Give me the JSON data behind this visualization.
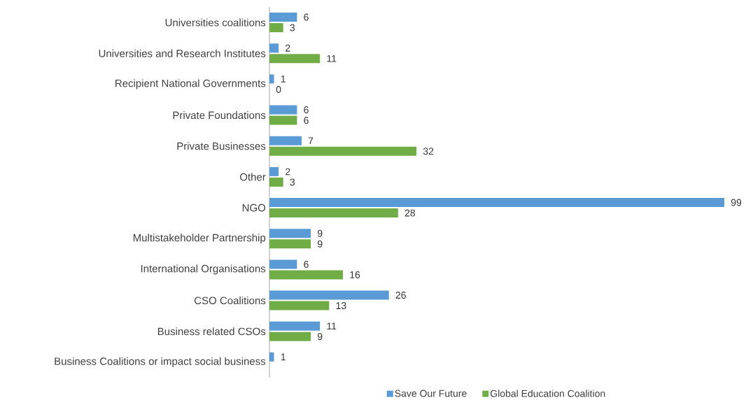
{
  "chart_data": {
    "type": "bar",
    "orientation": "horizontal",
    "categories": [
      "Universities coalitions",
      "Universities and Research Institutes",
      "Recipient National Governments",
      "Private Foundations",
      "Private Businesses",
      "Other",
      "NGO",
      "Multistakeholder Partnership",
      "International Organisations",
      "CSO Coalitions",
      "Business related CSOs",
      "Business Coalitions or impact social business"
    ],
    "series": [
      {
        "name": "Save Our Future",
        "color": "#5b9bd5",
        "values": [
          6,
          2,
          1,
          6,
          7,
          2,
          99,
          9,
          6,
          26,
          11,
          1
        ]
      },
      {
        "name": "Global Education Coalition",
        "color": "#70ad47",
        "values": [
          3,
          11,
          0,
          6,
          32,
          3,
          28,
          9,
          16,
          13,
          9,
          null
        ]
      }
    ],
    "data_labels": true,
    "tick_labels": "y",
    "legend": "bottom"
  }
}
